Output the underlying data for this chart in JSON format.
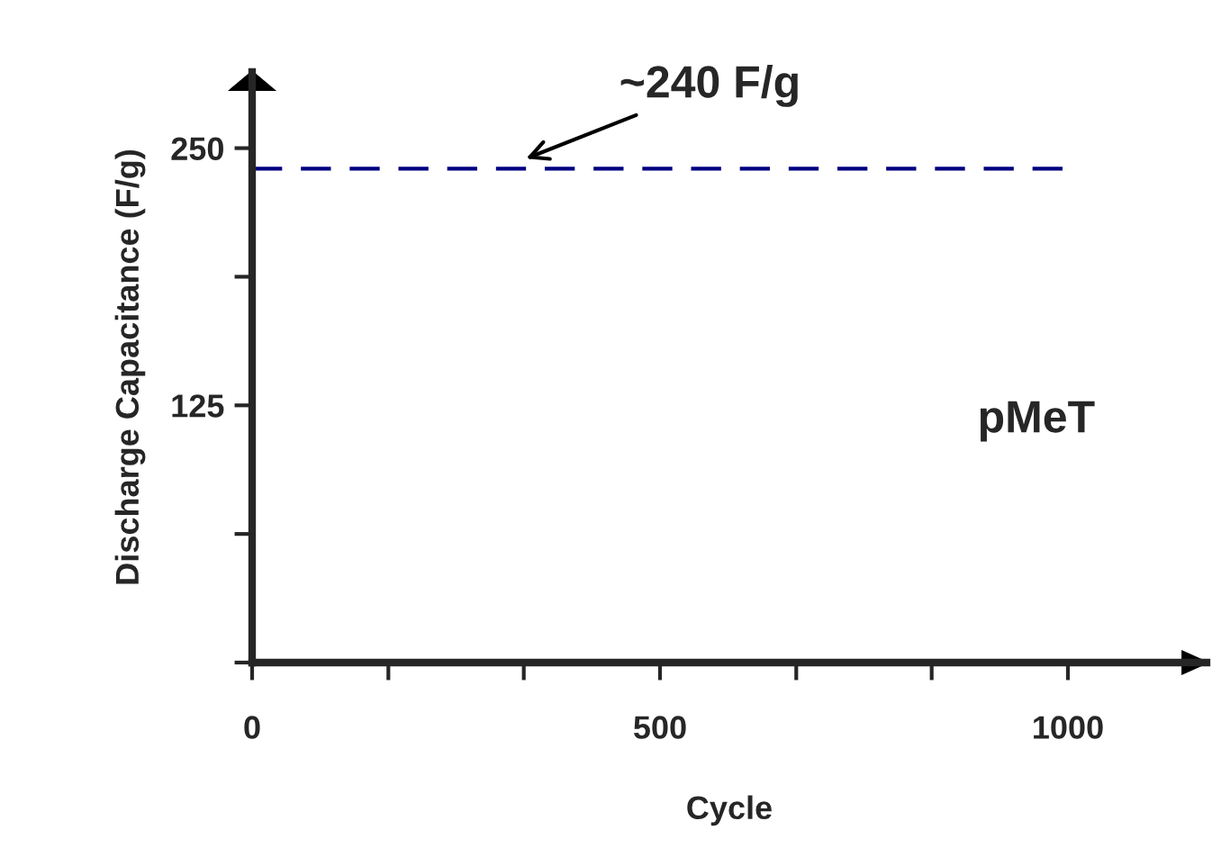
{
  "chart_data": {
    "type": "line",
    "xlabel": "Cycle",
    "ylabel": "Discharge Capacitance (F/g)",
    "x": [
      0,
      1000
    ],
    "series": [
      {
        "color": "#000080",
        "values": [
          240,
          240
        ],
        "line_style": "dashed"
      }
    ],
    "marker": "none",
    "xlim": [
      0,
      1170
    ],
    "xticks": [
      0,
      {
        "value": 167,
        "label": null
      },
      {
        "value": 333,
        "label": null
      },
      500,
      {
        "value": 667,
        "label": null
      },
      {
        "value": 833,
        "label": null
      },
      1000
    ],
    "ylim": [
      0,
      287
    ],
    "yticks": [
      {
        "value": 0,
        "label": null
      },
      {
        "value": 62.5,
        "label": null
      },
      125,
      {
        "value": 187.5,
        "label": null
      },
      250
    ],
    "grid": false,
    "annotations": [
      {
        "text": "~240 F/g",
        "x": 330,
        "y": 240
      },
      "pMeT"
    ]
  }
}
